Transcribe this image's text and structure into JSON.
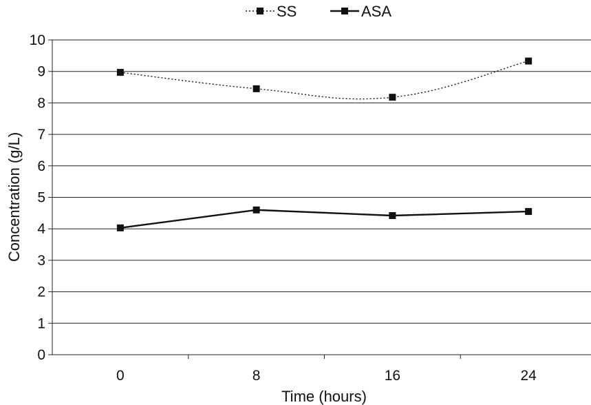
{
  "chart_data": {
    "type": "line",
    "title": "",
    "xlabel": "Time (hours)",
    "ylabel": "Concentration (g/L)",
    "categories": [
      "0",
      "8",
      "16",
      "24"
    ],
    "ylim": [
      0,
      10
    ],
    "yticks": [
      0,
      1,
      2,
      3,
      4,
      5,
      6,
      7,
      8,
      9,
      10
    ],
    "grid": true,
    "legend_position": "top-center",
    "series": [
      {
        "name": "SS",
        "line_style": "dotted",
        "marker": "square",
        "values": [
          8.97,
          8.45,
          8.18,
          9.33
        ]
      },
      {
        "name": "ASA",
        "line_style": "solid",
        "marker": "square",
        "values": [
          4.03,
          4.6,
          4.42,
          4.55
        ]
      }
    ],
    "colors": {
      "series": "#111111",
      "grid": "#222222",
      "axis": "#222222"
    }
  }
}
